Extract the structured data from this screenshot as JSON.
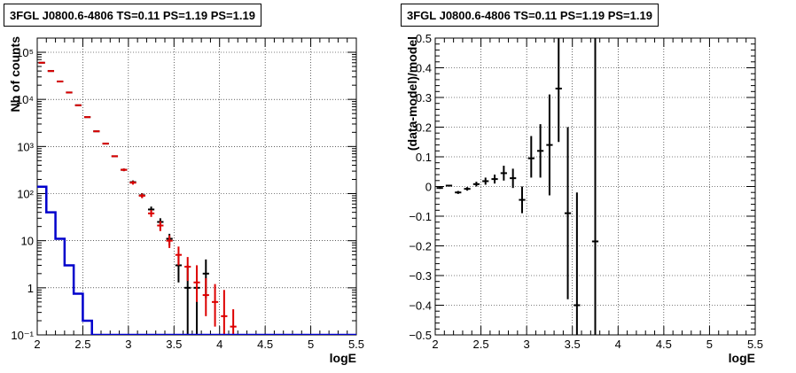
{
  "chart_data": [
    {
      "type": "scatter",
      "title": "3FGL J0800.6-4806 TS=0.11 PS=1.19 PS=1.19",
      "xlabel": "logE",
      "ylabel": "Nb of counts",
      "xlim": [
        2,
        5.5
      ],
      "ylim": [
        0.1,
        200000
      ],
      "yscale": "log",
      "grid": true,
      "x_ticks": [
        2,
        2.5,
        3,
        3.5,
        4,
        4.5,
        5,
        5.5
      ],
      "x_tick_labels": [
        "2",
        "2.5",
        "3",
        "3.5",
        "4",
        "4.5",
        "5",
        "5.5"
      ],
      "y_ticks": [
        0.1,
        1,
        10,
        100,
        1000,
        10000,
        100000
      ],
      "y_tick_labels": [
        "10⁻¹",
        "1",
        "10",
        "10²",
        "10³",
        "10⁴",
        "10⁵"
      ],
      "series": [
        {
          "color": "#000000",
          "points": [
            {
              "x": 2.05,
              "y": 60000,
              "lo": 60000,
              "hi": 60000
            },
            {
              "x": 2.15,
              "y": 40000,
              "lo": 40000,
              "hi": 40000
            },
            {
              "x": 2.25,
              "y": 24000,
              "lo": 24000,
              "hi": 24000
            },
            {
              "x": 2.35,
              "y": 14000,
              "lo": 14000,
              "hi": 14000
            },
            {
              "x": 2.45,
              "y": 7500,
              "lo": 7500,
              "hi": 7500
            },
            {
              "x": 2.55,
              "y": 4200,
              "lo": 4200,
              "hi": 4200
            },
            {
              "x": 2.65,
              "y": 2100,
              "lo": 2100,
              "hi": 2100
            },
            {
              "x": 2.75,
              "y": 1150,
              "lo": 1150,
              "hi": 1150
            },
            {
              "x": 2.85,
              "y": 620,
              "lo": 620,
              "hi": 620
            },
            {
              "x": 2.95,
              "y": 320,
              "lo": 300,
              "hi": 340
            },
            {
              "x": 3.05,
              "y": 175,
              "lo": 160,
              "hi": 190
            },
            {
              "x": 3.15,
              "y": 92,
              "lo": 82,
              "hi": 102
            },
            {
              "x": 3.25,
              "y": 46,
              "lo": 40,
              "hi": 53
            },
            {
              "x": 3.35,
              "y": 25,
              "lo": 20,
              "hi": 30
            },
            {
              "x": 3.45,
              "y": 11,
              "lo": 8,
              "hi": 14
            },
            {
              "x": 3.55,
              "y": 3,
              "lo": 1.3,
              "hi": 5
            },
            {
              "x": 3.65,
              "y": 1,
              "lo": 0.1,
              "hi": 3
            },
            {
              "x": 3.75,
              "y": 1,
              "lo": 0.1,
              "hi": 3
            },
            {
              "x": 3.85,
              "y": 2,
              "lo": 0.6,
              "hi": 4
            }
          ]
        },
        {
          "color": "#dd0000",
          "points": [
            {
              "x": 2.05,
              "y": 60000,
              "lo": 60000,
              "hi": 60000
            },
            {
              "x": 2.15,
              "y": 40000,
              "lo": 40000,
              "hi": 40000
            },
            {
              "x": 2.25,
              "y": 24000,
              "lo": 24000,
              "hi": 24000
            },
            {
              "x": 2.35,
              "y": 14000,
              "lo": 14000,
              "hi": 14000
            },
            {
              "x": 2.45,
              "y": 7500,
              "lo": 7500,
              "hi": 7500
            },
            {
              "x": 2.55,
              "y": 4200,
              "lo": 4200,
              "hi": 4200
            },
            {
              "x": 2.65,
              "y": 2100,
              "lo": 2100,
              "hi": 2100
            },
            {
              "x": 2.75,
              "y": 1150,
              "lo": 1150,
              "hi": 1150
            },
            {
              "x": 2.85,
              "y": 620,
              "lo": 620,
              "hi": 620
            },
            {
              "x": 2.95,
              "y": 320,
              "lo": 300,
              "hi": 340
            },
            {
              "x": 3.05,
              "y": 170,
              "lo": 155,
              "hi": 185
            },
            {
              "x": 3.15,
              "y": 90,
              "lo": 80,
              "hi": 100
            },
            {
              "x": 3.25,
              "y": 38,
              "lo": 32,
              "hi": 45
            },
            {
              "x": 3.35,
              "y": 21,
              "lo": 16,
              "hi": 26
            },
            {
              "x": 3.45,
              "y": 10,
              "lo": 7,
              "hi": 13
            },
            {
              "x": 3.55,
              "y": 5,
              "lo": 3,
              "hi": 7.5
            },
            {
              "x": 3.65,
              "y": 2.8,
              "lo": 1.4,
              "hi": 4.5
            },
            {
              "x": 3.75,
              "y": 1.3,
              "lo": 0.5,
              "hi": 3
            },
            {
              "x": 3.85,
              "y": 0.7,
              "lo": 0.25,
              "hi": 1.6
            },
            {
              "x": 3.95,
              "y": 0.5,
              "lo": 0.15,
              "hi": 1.2
            },
            {
              "x": 4.05,
              "y": 0.25,
              "lo": 0.1,
              "hi": 0.9
            },
            {
              "x": 4.15,
              "y": 0.15,
              "lo": 0.1,
              "hi": 0.35
            }
          ]
        },
        {
          "type": "step",
          "color": "#0000cc",
          "bins": [
            {
              "x0": 2.0,
              "x1": 2.1,
              "y": 140
            },
            {
              "x0": 2.1,
              "x1": 2.2,
              "y": 40
            },
            {
              "x0": 2.2,
              "x1": 2.3,
              "y": 11
            },
            {
              "x0": 2.3,
              "x1": 2.4,
              "y": 3
            },
            {
              "x0": 2.4,
              "x1": 2.5,
              "y": 0.75
            },
            {
              "x0": 2.5,
              "x1": 2.6,
              "y": 0.2
            },
            {
              "x0": 2.6,
              "x1": 5.5,
              "y": 0.1
            }
          ]
        }
      ]
    },
    {
      "type": "scatter",
      "title": "3FGL J0800.6-4806 TS=0.11 PS=1.19 PS=1.19",
      "xlabel": "logE",
      "ylabel": "(data-model)/model",
      "xlim": [
        2,
        5.5
      ],
      "ylim": [
        -0.5,
        0.5
      ],
      "grid": true,
      "x_ticks": [
        2,
        2.5,
        3,
        3.5,
        4,
        4.5,
        5,
        5.5
      ],
      "x_tick_labels": [
        "2",
        "2.5",
        "3",
        "3.5",
        "4",
        "4.5",
        "5",
        "5.5"
      ],
      "y_ticks": [
        -0.5,
        -0.4,
        -0.3,
        -0.2,
        -0.1,
        0,
        0.1,
        0.2,
        0.3,
        0.4,
        0.5
      ],
      "y_tick_labels": [
        "−0.5",
        "−0.4",
        "−0.3",
        "−0.2",
        "−0.1",
        "0",
        "0.1",
        "0.2",
        "0.3",
        "0.4",
        "0.5"
      ],
      "series": [
        {
          "color": "#000000",
          "points": [
            {
              "x": 2.05,
              "y": -0.005,
              "lo": -0.008,
              "hi": -0.002
            },
            {
              "x": 2.15,
              "y": 0.003,
              "lo": 0.0,
              "hi": 0.006
            },
            {
              "x": 2.25,
              "y": -0.02,
              "lo": -0.025,
              "hi": -0.015
            },
            {
              "x": 2.35,
              "y": -0.008,
              "lo": -0.014,
              "hi": -0.002
            },
            {
              "x": 2.45,
              "y": 0.008,
              "lo": 0.0,
              "hi": 0.016
            },
            {
              "x": 2.55,
              "y": 0.018,
              "lo": 0.006,
              "hi": 0.03
            },
            {
              "x": 2.65,
              "y": 0.025,
              "lo": 0.01,
              "hi": 0.04
            },
            {
              "x": 2.75,
              "y": 0.045,
              "lo": 0.02,
              "hi": 0.07
            },
            {
              "x": 2.85,
              "y": 0.028,
              "lo": -0.005,
              "hi": 0.06
            },
            {
              "x": 2.95,
              "y": -0.045,
              "lo": -0.09,
              "hi": 0.0
            },
            {
              "x": 3.05,
              "y": 0.095,
              "lo": 0.03,
              "hi": 0.17
            },
            {
              "x": 3.15,
              "y": 0.12,
              "lo": 0.03,
              "hi": 0.21
            },
            {
              "x": 3.25,
              "y": 0.14,
              "lo": -0.03,
              "hi": 0.31
            },
            {
              "x": 3.35,
              "y": 0.33,
              "lo": 0.15,
              "hi": 0.5
            },
            {
              "x": 3.45,
              "y": -0.09,
              "lo": -0.38,
              "hi": 0.2
            },
            {
              "x": 3.55,
              "y": -0.4,
              "lo": -0.5,
              "hi": -0.02
            },
            {
              "x": 3.75,
              "y": -0.185,
              "lo": -0.5,
              "hi": 0.5
            }
          ]
        }
      ]
    }
  ]
}
